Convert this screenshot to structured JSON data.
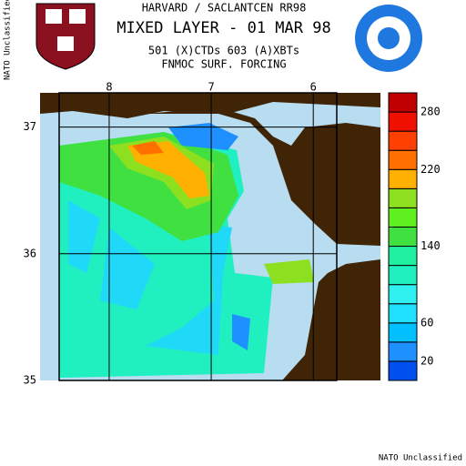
{
  "header": {
    "lines": [
      "HARVARD / SACLANTCEN RR98",
      "MIXED LAYER - 01 MAR 98",
      "501 (X)CTDs   603 (A)XBTs",
      "FNMOC SURF. FORCING"
    ]
  },
  "classification": {
    "side": "NATO Unclassified",
    "footer": "NATO Unclassified"
  },
  "map": {
    "xlim": [
      8.49,
      5.77
    ],
    "xticks": [
      8,
      7,
      6
    ],
    "ylim": [
      35,
      37.27
    ],
    "yticks": [
      37,
      36,
      35
    ],
    "grid": true
  },
  "colorbar": {
    "bounds": [
      0,
      20,
      40,
      60,
      80,
      100,
      120,
      140,
      160,
      180,
      200,
      220,
      240,
      260,
      280,
      300
    ],
    "colors": [
      "#0050f0",
      "#1e90ff",
      "#00c0ff",
      "#20e0ff",
      "#30f0f0",
      "#20f0c0",
      "#20f0a0",
      "#40e040",
      "#60f020",
      "#8ce020",
      "#ffb000",
      "#ff7000",
      "#ff4000",
      "#f01000",
      "#c00000"
    ],
    "ticks": [
      20,
      60,
      140,
      220,
      280
    ]
  }
}
